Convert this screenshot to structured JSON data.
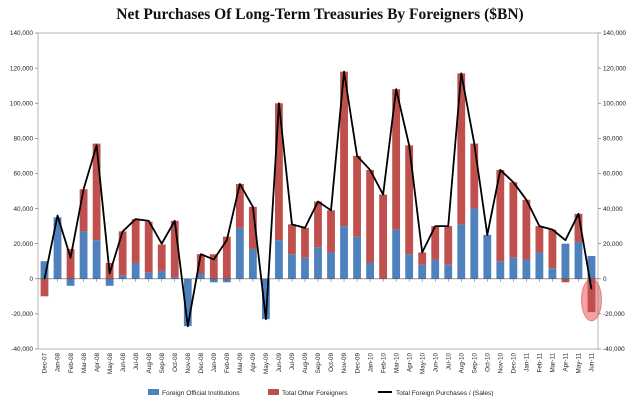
{
  "chart_data": {
    "type": "bar",
    "title": "Net Purchases Of Long-Term Treasuries By Foreigners ($BN)",
    "xlabel": "",
    "ylabel": "",
    "ylim": [
      -40000,
      140000
    ],
    "yticks": [
      -40000,
      -20000,
      0,
      20000,
      40000,
      60000,
      80000,
      100000,
      120000,
      140000
    ],
    "ytick_labels": [
      "-40,000",
      "-20,000",
      "0",
      "20,000",
      "40,000",
      "60,000",
      "80,000",
      "100,000",
      "120,000",
      "140,000"
    ],
    "secondary_y_axis": true,
    "stacked": true,
    "grid": false,
    "legend_position": "bottom",
    "categories": [
      "Dec-07",
      "Jan-08",
      "Feb-08",
      "Mar-08",
      "Apr-08",
      "May-08",
      "Jun-08",
      "Jul-08",
      "Aug-08",
      "Sep-08",
      "Oct-08",
      "Nov-08",
      "Dec-08",
      "Jan-09",
      "Feb-09",
      "Mar-09",
      "Apr-09",
      "May-09",
      "Jun-09",
      "Jul-09",
      "Aug-09",
      "Sep-09",
      "Oct-09",
      "Nov-09",
      "Dec-09",
      "Jan-10",
      "Feb-10",
      "Mar-10",
      "Apr-10",
      "May-10",
      "Jun-10",
      "Jul-10",
      "Aug-10",
      "Sep-10",
      "Oct-10",
      "Nov-10",
      "Dec-10",
      "Jan-11",
      "Feb-11",
      "Mar-11",
      "Apr-11",
      "May-11",
      "Jun-11"
    ],
    "tick_labels": [
      "Dec-07",
      "Jan-08",
      "Feb-08",
      "Mar-08",
      "Apr-08",
      "May-08",
      "Jun-08",
      "Jul-08",
      "Aug-08",
      "Sep-08",
      "Oct-08",
      "Nov-08",
      "Dec-08",
      "Jan-09",
      "Feb-09",
      "Mar-09",
      "Apr-09",
      "May-09",
      "Jun-09",
      "Jul-09",
      "Aug-09",
      "Sep-09",
      "Oct-09",
      "Nov-09",
      "Dec-09",
      "Jan-10",
      "Feb-10",
      "Mar-10",
      "Apr-10",
      "May-10",
      "Jun-10",
      "Jul-10",
      "Aug-10",
      "Sep-10",
      "Oct-10",
      "Nov-10",
      "Dec-10",
      "Jan-11",
      "Feb-11",
      "Mar-11",
      "Apr-11",
      "May-11",
      "Jun-11"
    ],
    "series": [
      {
        "name": "Foreign Official Institutions",
        "kind": "bar",
        "color": "#4f81bd",
        "values": [
          10000,
          35000,
          -4000,
          27000,
          22000,
          -4000,
          2000,
          9000,
          3500,
          4500,
          1000,
          -27000,
          3000,
          -2000,
          -2000,
          29000,
          17000,
          -23000,
          22000,
          14000,
          12000,
          18000,
          15000,
          30000,
          24000,
          9000,
          0,
          28000,
          14000,
          8000,
          11000,
          8000,
          31000,
          40000,
          25000,
          10000,
          12000,
          11000,
          15000,
          6000,
          20000,
          21000,
          13000
        ]
      },
      {
        "name": "Total Other Foreigners",
        "kind": "bar",
        "color": "#c0504d",
        "values": [
          -10000,
          0,
          17000,
          24000,
          55000,
          9000,
          25000,
          25000,
          29000,
          15000,
          32000,
          0,
          11000,
          14000,
          24000,
          25000,
          24000,
          0,
          78000,
          17000,
          17000,
          26000,
          24000,
          88000,
          46000,
          53000,
          48000,
          80000,
          62000,
          7000,
          19000,
          22000,
          86000,
          37000,
          0,
          52000,
          43000,
          34000,
          15000,
          22000,
          -2000,
          16000,
          -19000
        ]
      },
      {
        "name": "Total Foreign Purchases / (Sales)",
        "kind": "line",
        "color": "#000000",
        "values": [
          0,
          36000,
          12000,
          51000,
          76000,
          3000,
          27000,
          34000,
          33000,
          20000,
          33000,
          -27000,
          14000,
          11000,
          22000,
          54000,
          41000,
          -23000,
          100000,
          31000,
          29000,
          44000,
          39000,
          118000,
          70000,
          62000,
          48000,
          108000,
          76000,
          15000,
          30000,
          30000,
          117000,
          77000,
          25000,
          62000,
          55000,
          45000,
          30000,
          28000,
          22000,
          37000,
          -6000
        ]
      }
    ],
    "annotations": [
      {
        "type": "highlight-ellipse",
        "target_category": "Jun-11",
        "color": "#e85a5a"
      }
    ]
  }
}
